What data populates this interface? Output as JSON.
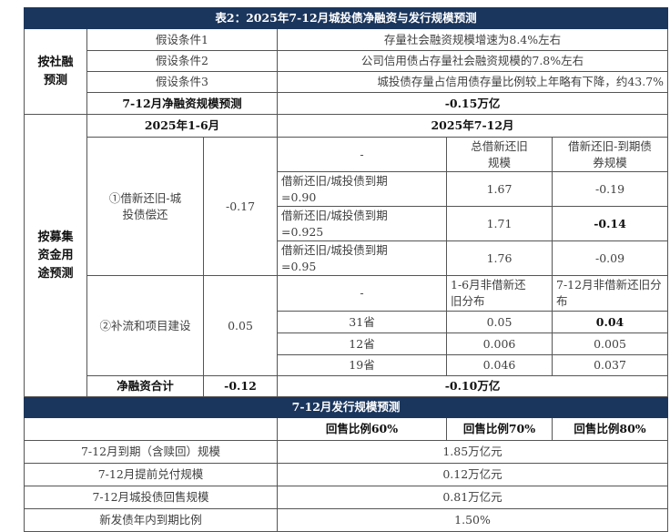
{
  "title": "表2：2025年7-12月城投债净融资与发行规模预测",
  "social_financing": {
    "label": "按社融预测",
    "assumptions": [
      {
        "label": "假设条件1",
        "value": "存量社会融资规模增速为8.4%左右"
      },
      {
        "label": "假设条件2",
        "value": "公司信用债占存量社会融资规模的7.8%左右"
      },
      {
        "label": "假设条件3",
        "value": "城投债存量占信用债存量比例较上年略有下降，约43.7%"
      }
    ],
    "forecast_label": "7-12月净融资规模预测",
    "forecast_value": "-0.15万亿"
  },
  "fund_use": {
    "label": "按募集资金用途预测",
    "h1_header": "2025年1-6月",
    "h2_header": "2025年7-12月",
    "refinancing": {
      "label": "①借新还旧-城投债偿还",
      "h1_value": "-0.17",
      "header": [
        "-",
        "总借新还旧规模",
        "借新还旧-到期债券规模"
      ],
      "rows": [
        [
          "借新还旧/城投债到期=0.90",
          "1.67",
          "-0.19"
        ],
        [
          "借新还旧/城投债到期=0.925",
          "1.71",
          "-0.14"
        ],
        [
          "借新还旧/城投债到期=0.95",
          "1.76",
          "-0.09"
        ]
      ]
    },
    "working_capital": {
      "label": "②补流和项目建设",
      "h1_value": "0.05",
      "header": [
        "-",
        "1-6月非借新还旧分布",
        "7-12月非借新还旧分布"
      ],
      "rows": [
        [
          "31省",
          "0.05",
          "0.04"
        ],
        [
          "12省",
          "0.006",
          "0.005"
        ],
        [
          "19省",
          "0.046",
          "0.037"
        ]
      ]
    },
    "total_label": "净融资合计",
    "total_h1": "-0.12",
    "total_h2": "-0.10万亿"
  },
  "issuance": {
    "title": "7-12月发行规模预测",
    "columns": [
      "回售比例60%",
      "回售比例70%",
      "回售比例80%"
    ],
    "rows": [
      {
        "label": "7-12月到期（含赎回）规模",
        "value": "1.85万亿元"
      },
      {
        "label": "7-12月提前兑付规模",
        "value": "0.12万亿元"
      },
      {
        "label": "7-12月城投债回售规模",
        "value": "0.81万亿元"
      },
      {
        "label": "新发债年内到期比例",
        "value": "1.50%"
      }
    ]
  },
  "colors": {
    "header_bg": "#1b365d",
    "header_text": "#ffffff"
  }
}
